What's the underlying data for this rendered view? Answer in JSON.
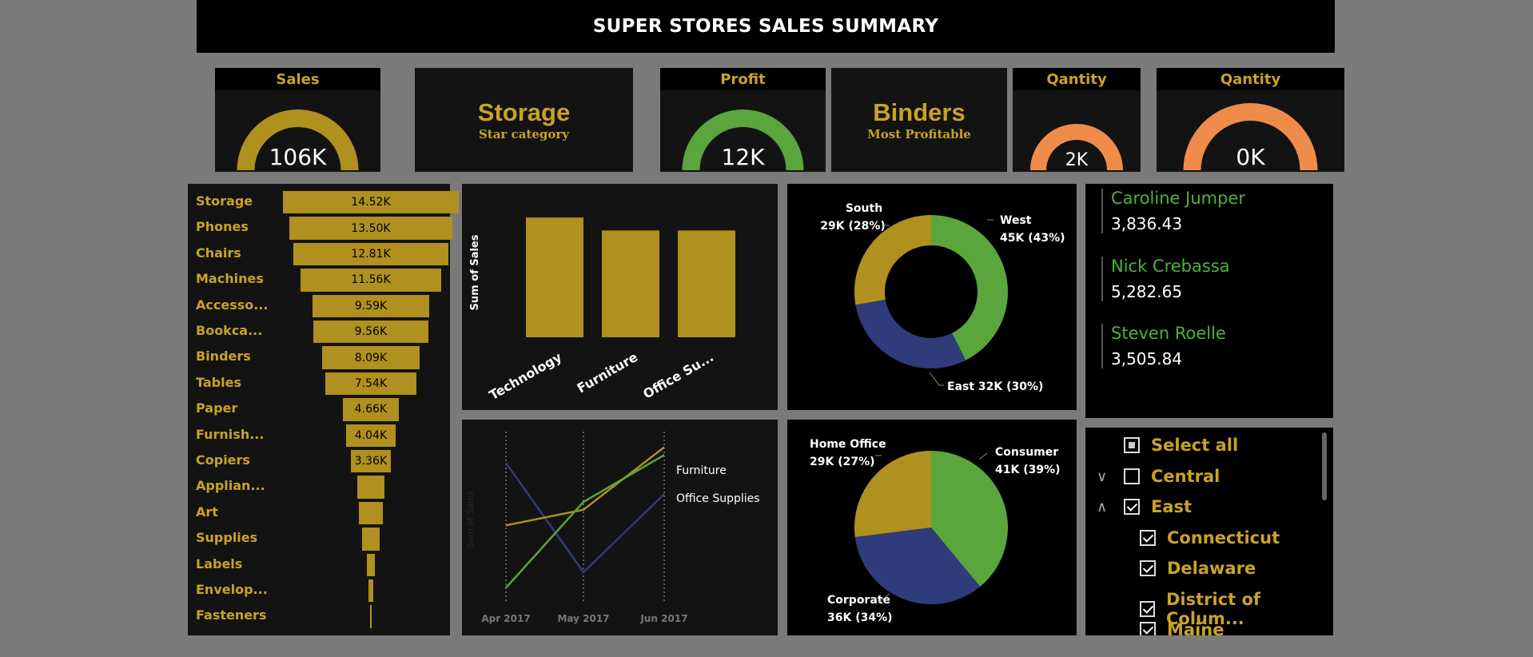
{
  "header": {
    "title": "SUPER STORES SALES SUMMARY"
  },
  "kpis": [
    {
      "title": "Sales",
      "value": "106K",
      "fill": 1.0,
      "color": "#b0901e"
    },
    {
      "title": "Profit",
      "value": "12K",
      "fill": 1.0,
      "color": "#5aa53c"
    },
    {
      "title": "Qantity",
      "value": "2K",
      "fill": 1.0,
      "color": "#f08c4a"
    },
    {
      "title": "Qantity",
      "value": "0K",
      "fill": 1.0,
      "color": "#f08c4a"
    }
  ],
  "cards": {
    "star": {
      "value": "Storage",
      "label": "Star category"
    },
    "profitable": {
      "value": "Binders",
      "label": "Most Profitable"
    }
  },
  "funnel_chart": {
    "chart_data": {
      "type": "bar",
      "categories": [
        "Storage",
        "Phones",
        "Chairs",
        "Machines",
        "Accesso...",
        "Bookca...",
        "Binders",
        "Tables",
        "Paper",
        "Furnish...",
        "Copiers",
        "Applian...",
        "Art",
        "Supplies",
        "Labels",
        "Envelop...",
        "Fasteners"
      ],
      "values": [
        14.52,
        13.5,
        12.81,
        11.56,
        9.59,
        9.56,
        8.09,
        7.54,
        4.66,
        4.04,
        3.36,
        2.3,
        2.0,
        1.4,
        0.7,
        0.4,
        0.1
      ],
      "value_labels": [
        "14.52K",
        "13.50K",
        "12.81K",
        "11.56K",
        "9.59K",
        "9.56K",
        "8.09K",
        "7.54K",
        "4.66K",
        "4.04K",
        "3.36K",
        "",
        "",
        "",
        "",
        "",
        ""
      ],
      "color": "#b0901e"
    }
  },
  "category_chart": {
    "chart_data": {
      "type": "bar",
      "categories": [
        "Technology",
        "Furniture",
        "Office Su..."
      ],
      "values": [
        37,
        33,
        33
      ],
      "ylabel": "Sum of Sales",
      "ylim": [
        0,
        40
      ],
      "color": "#b0901e"
    }
  },
  "line_chart": {
    "chart_data": {
      "type": "line",
      "x": [
        "Apr 2017",
        "May 2017",
        "Jun 2017"
      ],
      "ylabel": "Sum of Sales",
      "series": [
        {
          "name": "",
          "values": [
            9,
            2,
            7
          ],
          "color": "#2f3b7a"
        },
        {
          "name": "Furniture",
          "values": [
            5,
            6,
            10
          ],
          "color": "#b0901e"
        },
        {
          "name": "Office Supplies",
          "values": [
            1,
            6.5,
            9.5
          ],
          "color": "#5aa53c"
        }
      ],
      "ylim": [
        0,
        11
      ],
      "legend_labels": [
        "Furniture",
        "Office Supplies"
      ]
    }
  },
  "region_chart": {
    "chart_data": {
      "type": "pie",
      "donut": true,
      "slices": [
        {
          "name": "West",
          "label": "West",
          "value_label": "45K (43%)",
          "value": 43,
          "color": "#5aa53c"
        },
        {
          "name": "East",
          "label": "East 32K (30%)",
          "value_label": "",
          "value": 30,
          "color": "#2f3b7a"
        },
        {
          "name": "South",
          "label": "South",
          "value_label": "29K (28%)",
          "value": 28,
          "color": "#b0901e"
        }
      ]
    }
  },
  "segment_chart": {
    "chart_data": {
      "type": "pie",
      "donut": false,
      "slices": [
        {
          "name": "Consumer",
          "label": "Consumer",
          "value_label": "41K (39%)",
          "value": 39,
          "color": "#5aa53c"
        },
        {
          "name": "Corporate",
          "label": "Corporate",
          "value_label": "36K (34%)",
          "value": 34,
          "color": "#2f3b7a"
        },
        {
          "name": "Home Office",
          "label": "Home Office",
          "value_label": "29K (27%)",
          "value": 27,
          "color": "#b0901e"
        }
      ]
    }
  },
  "people": [
    {
      "name": "Caroline Jumper",
      "value": "3,836.43"
    },
    {
      "name": "Nick Crebassa",
      "value": "5,282.65"
    },
    {
      "name": "Steven Roelle",
      "value": "3,505.84"
    }
  ],
  "slicer": {
    "items": [
      {
        "label": "Select all",
        "state": "partial",
        "level": 0,
        "chevron": ""
      },
      {
        "label": "Central",
        "state": "unchecked",
        "level": 0,
        "chevron": "down"
      },
      {
        "label": "East",
        "state": "checked",
        "level": 0,
        "chevron": "up"
      },
      {
        "label": "Connecticut",
        "state": "checked",
        "level": 1,
        "chevron": ""
      },
      {
        "label": "Delaware",
        "state": "checked",
        "level": 1,
        "chevron": ""
      },
      {
        "label": "District of Colum...",
        "state": "checked",
        "level": 1,
        "chevron": ""
      },
      {
        "label": "Maine",
        "state": "checked",
        "level": 1,
        "chevron": ""
      }
    ]
  }
}
